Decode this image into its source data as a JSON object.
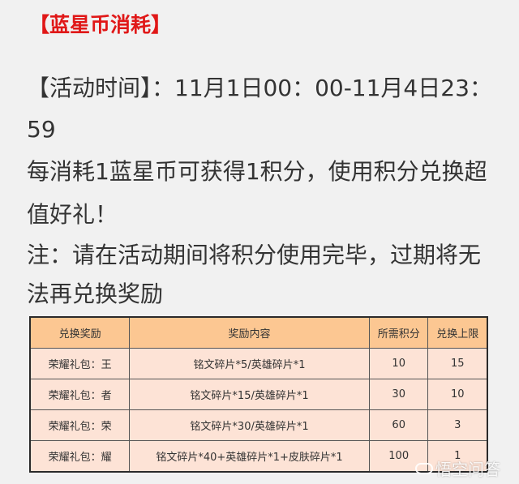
{
  "title": "【蓝星币消耗】",
  "lines": [
    "【活动时间】：11月1日00：00-11月4日23：",
    "59",
    "每消耗1蓝星币可获得1积分，使用积分兑换超",
    "值好礼！",
    "注：请在活动期间将积分使用完毕，过期将无",
    "法再兑换奖励"
  ],
  "table": {
    "headers": [
      "兑换奖励",
      "奖励内容",
      "所需积分",
      "兑换上限"
    ],
    "rows": [
      [
        "荣耀礼包：王",
        "铭文碎片*5/英雄碎片*1",
        "10",
        "15"
      ],
      [
        "荣耀礼包：者",
        "铭文碎片*15/英雄碎片*1",
        "30",
        "10"
      ],
      [
        "荣耀礼包：荣",
        "铭文碎片*30/英雄碎片*1",
        "60",
        "3"
      ],
      [
        "荣耀礼包：耀",
        "铭文碎片*40+英雄碎片*1+皮肤碎片*1",
        "100",
        "1"
      ]
    ]
  },
  "watermark": "悟空问答",
  "colors": {
    "title": "#e01818",
    "header_bg": "#fcc792",
    "row_bg": "#fde3d6"
  }
}
